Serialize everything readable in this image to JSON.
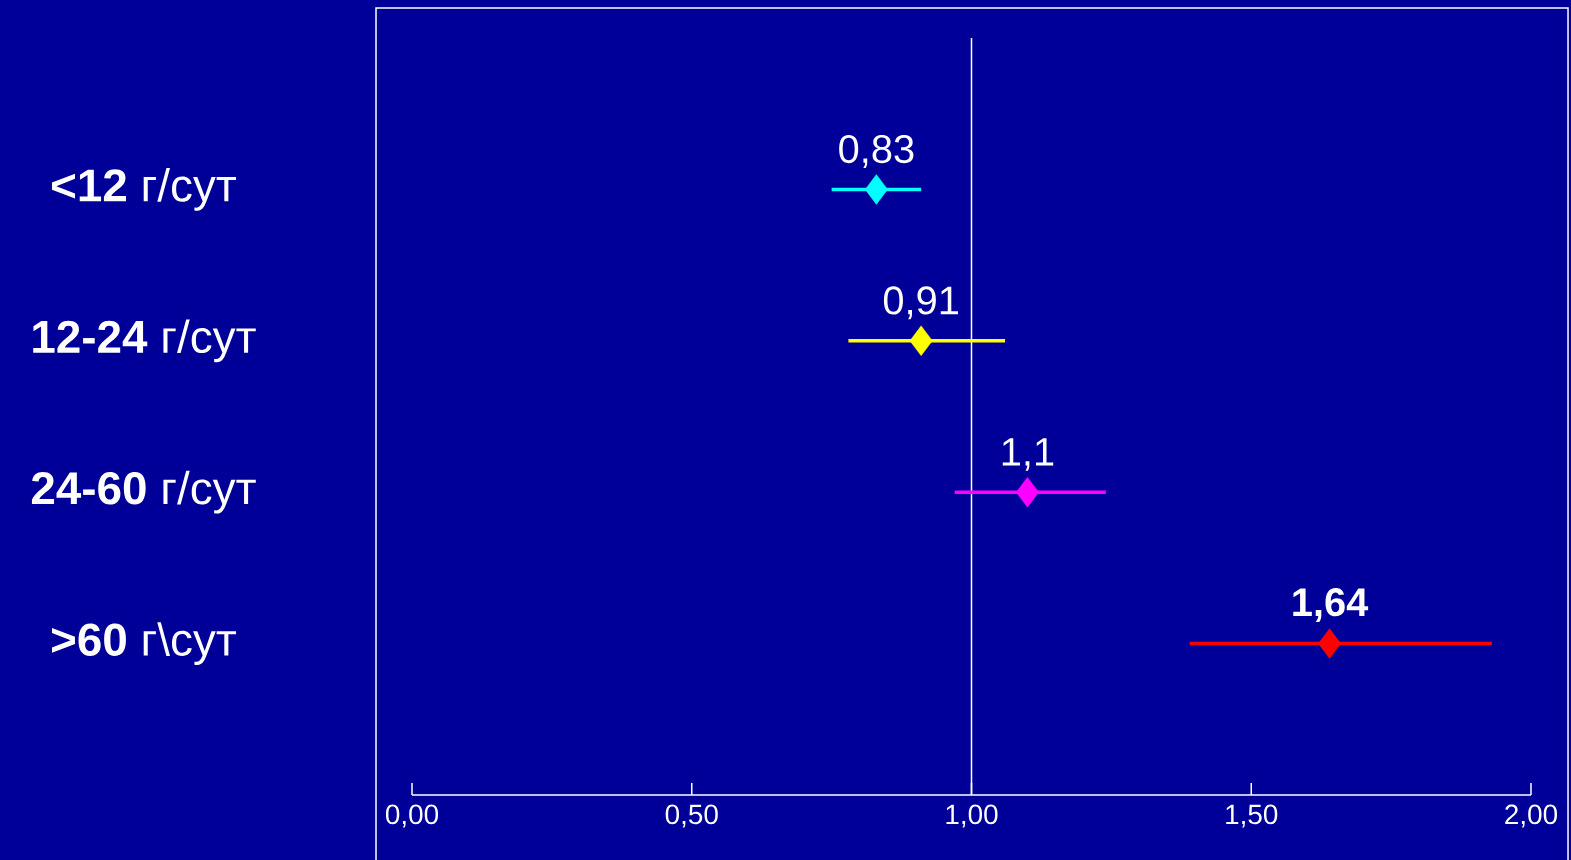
{
  "chart_data": {
    "type": "scatter",
    "orientation": "horizontal",
    "categories": [
      "**<12** г/сут",
      "**12-24** г/сут",
      "**24-60** г/сут",
      "**>60** г\\сут"
    ],
    "values": [
      0.83,
      0.91,
      1.1,
      1.64
    ],
    "errors": [
      [
        0.75,
        0.91
      ],
      [
        0.78,
        1.06
      ],
      [
        0.97,
        1.24
      ],
      [
        1.39,
        1.93
      ]
    ],
    "colors": [
      "#00ffff",
      "#ffff00",
      "#ff00ff",
      "#ff0000"
    ],
    "marker": "diamond",
    "value_labels": [
      "0,83",
      "0,91",
      "1,1",
      "**1,64**"
    ],
    "xlim": [
      0,
      2
    ],
    "xticks": [
      {
        "value": 0,
        "label": "0,00"
      },
      {
        "value": 0.5,
        "label": "0,50"
      },
      {
        "value": 1,
        "label": "1,00"
      },
      {
        "value": 1.5,
        "label": "1,50"
      },
      {
        "value": 2,
        "label": "2,00"
      }
    ],
    "ref_lines": [
      {
        "axis": "x",
        "value": 1,
        "color": "#ffffff"
      }
    ]
  }
}
